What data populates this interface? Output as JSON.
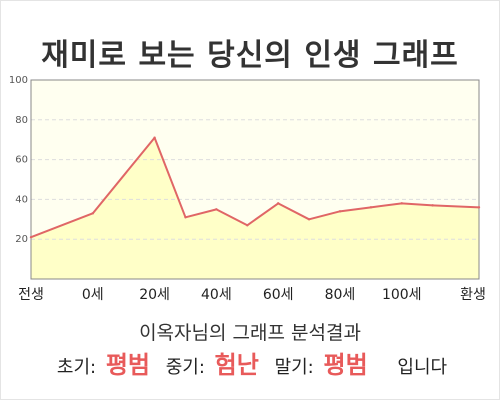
{
  "page": {
    "title": "재미로 보는 당신의 인생 그래프",
    "subtitle": "이옥자님의 그래프 분석결과",
    "result": {
      "early_label": "초기:",
      "early_value": "평범",
      "mid_label": "중기:",
      "mid_value": "험난",
      "late_label": "말기:",
      "late_value": "평범",
      "suffix": "입니다"
    }
  },
  "colors": {
    "line": "#e06666",
    "fill": "#ffffc8",
    "plot_background": "#fffff0",
    "grid": "#dddddd",
    "axis": "#888888",
    "label_text": "#222222",
    "accent": "#e85a5a"
  },
  "chart_data": {
    "type": "area",
    "title": "",
    "xlabel": "",
    "ylabel": "",
    "xlim": [
      -20,
      125
    ],
    "ylim": [
      0,
      100
    ],
    "y_ticks": [
      20,
      40,
      60,
      80,
      100
    ],
    "x_tick_labels": [
      {
        "x": -20,
        "label": "전생"
      },
      {
        "x": 0,
        "label": "0세"
      },
      {
        "x": 20,
        "label": "20세"
      },
      {
        "x": 40,
        "label": "40세"
      },
      {
        "x": 60,
        "label": "60세"
      },
      {
        "x": 80,
        "label": "80세"
      },
      {
        "x": 100,
        "label": "100세"
      },
      {
        "x": 125,
        "label": "환생"
      }
    ],
    "grid": true,
    "legend": "none",
    "series": [
      {
        "x": [
          -20,
          0,
          20,
          30,
          40,
          50,
          60,
          70,
          80,
          90,
          100,
          110,
          125
        ],
        "values": [
          21,
          33,
          71,
          31,
          35,
          27,
          38,
          30,
          34,
          36,
          38,
          37,
          36
        ]
      }
    ]
  }
}
